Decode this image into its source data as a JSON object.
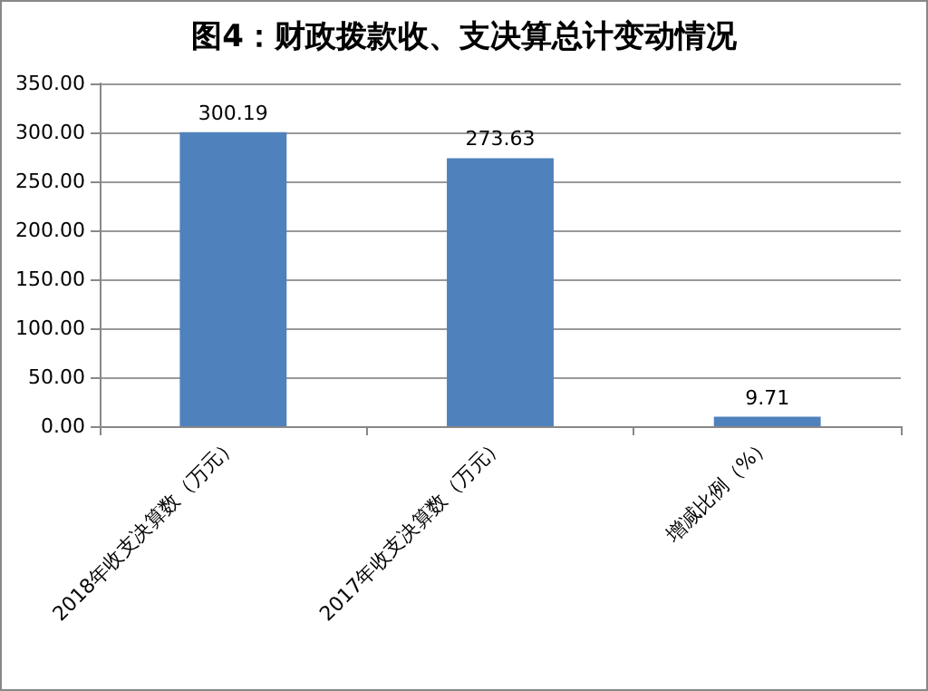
{
  "chart_data": {
    "type": "bar",
    "title": "图4：财政拨款收、支决算总计变动情况",
    "categories": [
      "2018年收支决算数（万元）",
      "2017年收支决算数（万元）",
      "增减比例（%）"
    ],
    "values": [
      300.19,
      273.63,
      9.71
    ],
    "color": "#4f81bd",
    "ylim": [
      0,
      350
    ],
    "yticks": [
      {
        "value": 0,
        "label": "0.00"
      },
      {
        "value": 50,
        "label": "50.00"
      },
      {
        "value": 100,
        "label": "100.00"
      },
      {
        "value": 150,
        "label": "150.00"
      },
      {
        "value": 200,
        "label": "200.00"
      },
      {
        "value": 250,
        "label": "250.00"
      },
      {
        "value": 300,
        "label": "300.00"
      },
      {
        "value": 350,
        "label": "350.00"
      }
    ],
    "grid": true,
    "data_labels": true
  }
}
